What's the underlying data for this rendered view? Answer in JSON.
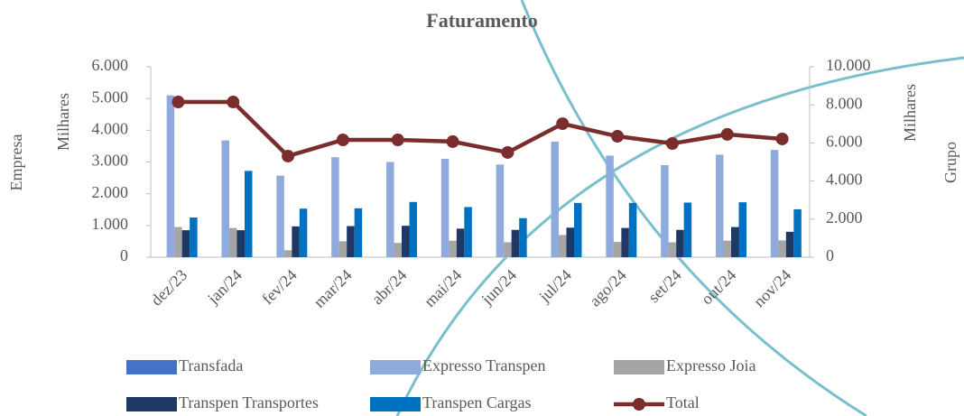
{
  "chart_data": {
    "type": "bar",
    "title": "Faturamento",
    "y_label": "Empresa",
    "y_unit": "Milhares",
    "y2_label": "Grupo",
    "y2_unit": "Milhares",
    "categories": [
      "dez/23",
      "jan/24",
      "fev/24",
      "mar/24",
      "abr/24",
      "mai/24",
      "jun/24",
      "jul/24",
      "ago/24",
      "set/24",
      "out/24",
      "nov/24"
    ],
    "series": [
      {
        "name": "Transfada",
        "color": "#4472c4",
        "values": [
          0,
          0,
          0,
          0,
          0,
          0,
          0,
          0,
          0,
          0,
          0,
          0
        ]
      },
      {
        "name": "Expresso Transpen",
        "color": "#8faadc",
        "values": [
          5100,
          3680,
          2570,
          3150,
          3000,
          3100,
          2920,
          3640,
          3200,
          2900,
          3230,
          3380
        ]
      },
      {
        "name": "Expresso Joia",
        "color": "#a5a5a5",
        "values": [
          950,
          920,
          220,
          500,
          450,
          520,
          470,
          700,
          480,
          470,
          520,
          530
        ]
      },
      {
        "name": "Transpen Transportes",
        "color": "#203864",
        "values": [
          850,
          850,
          970,
          980,
          990,
          900,
          860,
          930,
          920,
          860,
          950,
          800
        ]
      },
      {
        "name": "Transpen Cargas",
        "color": "#0070c0",
        "values": [
          1250,
          2720,
          1530,
          1540,
          1740,
          1580,
          1230,
          1710,
          1710,
          1720,
          1730,
          1510
        ]
      },
      {
        "name": "Total",
        "color": "#7b2c2c",
        "type": "line",
        "axis": "y2",
        "values": [
          8150,
          8150,
          5310,
          6160,
          6160,
          6070,
          5500,
          7010,
          6350,
          5970,
          6450,
          6210
        ]
      }
    ],
    "ylim": [
      0,
      6000
    ],
    "yticks": [
      0,
      {
        "value": 1000,
        "label": "1.000"
      },
      {
        "value": 2000,
        "label": "2.000"
      },
      {
        "value": 3000,
        "label": "3.000"
      },
      {
        "value": 4000,
        "label": "4.000"
      },
      {
        "value": 5000,
        "label": "5.000"
      },
      {
        "value": 6000,
        "label": "6.000"
      }
    ],
    "y2lim": [
      0,
      10000
    ],
    "y2ticks": [
      0,
      {
        "value": 2000,
        "label": "2.000"
      },
      {
        "value": 4000,
        "label": "4.000"
      },
      {
        "value": 6000,
        "label": "6.000"
      },
      {
        "value": 8000,
        "label": "8.000"
      },
      {
        "value": 10000,
        "label": "10.000"
      }
    ],
    "legend": "bottom"
  }
}
